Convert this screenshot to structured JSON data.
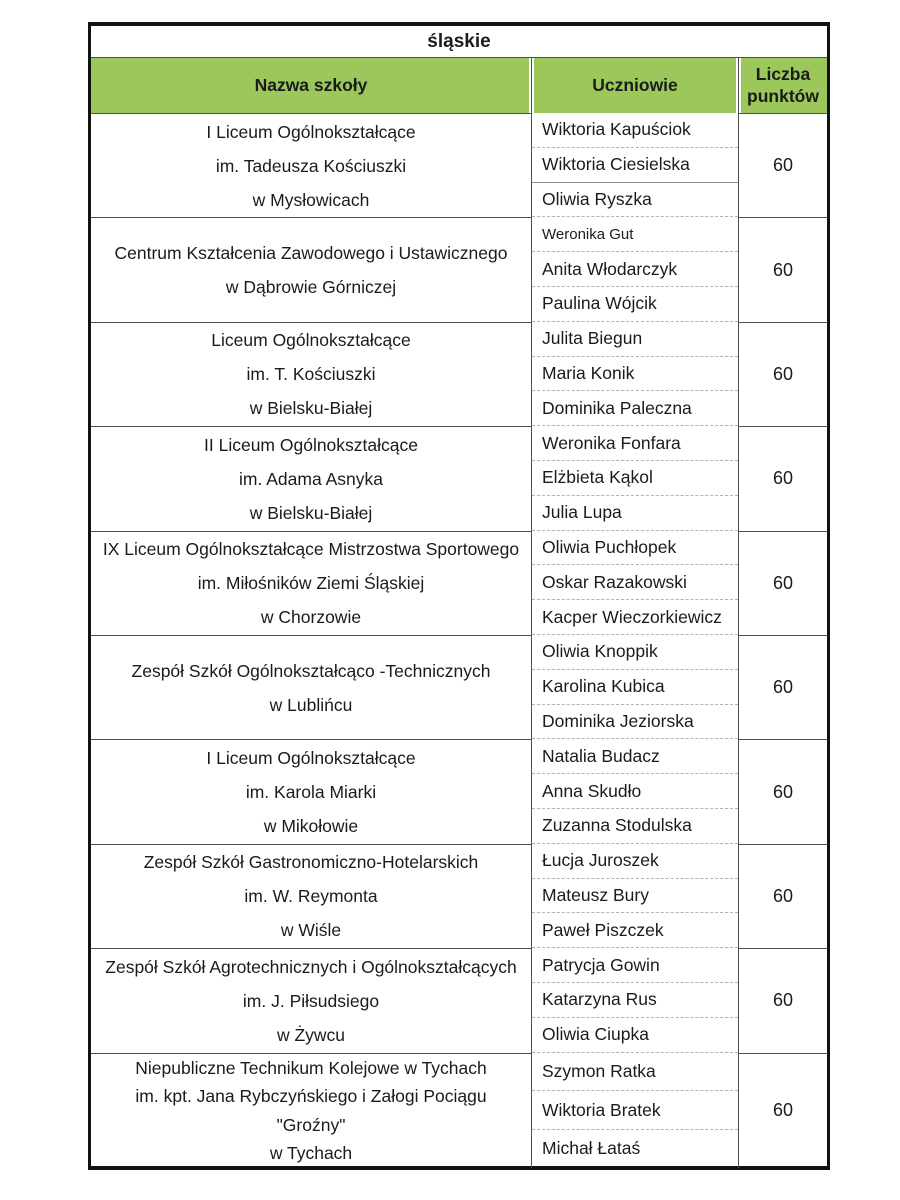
{
  "region_title": "śląskie",
  "accent_green": "#9cc75b",
  "columns": {
    "school": "Nazwa szkoły",
    "students": "Uczniowie",
    "points": "Liczba punktów"
  },
  "groups": [
    {
      "school": "I Liceum Ogólnokształcące\nim. Tadeusza Kościuszki\nw Mysłowicach",
      "students": [
        "Wiktoria Kapuściok",
        "Wiktoria Ciesielska",
        "Oliwia Ryszka"
      ],
      "points": "60"
    },
    {
      "school": "Centrum Kształcenia Zawodowego i Ustawicznego\nw Dąbrowie Górniczej",
      "students": [
        "Weronika Gut",
        "Anita Włodarczyk",
        "Paulina Wójcik"
      ],
      "points": "60"
    },
    {
      "school": "Liceum Ogólnokształcące\nim. T. Kościuszki\nw Bielsku-Białej",
      "students": [
        "Julita Biegun",
        "Maria Konik",
        "Dominika Paleczna"
      ],
      "points": "60"
    },
    {
      "school": "II Liceum Ogólnokształcące\nim. Adama Asnyka\nw Bielsku-Białej",
      "students": [
        "Weronika Fonfara",
        "Elżbieta Kąkol",
        "Julia Lupa"
      ],
      "points": "60"
    },
    {
      "school": "IX Liceum Ogólnokształcące Mistrzostwa Sportowego\nim. Miłośników Ziemi Śląskiej\nw Chorzowie",
      "students": [
        "Oliwia Puchłopek",
        "Oskar Razakowski",
        "Kacper Wieczorkiewicz"
      ],
      "points": "60"
    },
    {
      "school": "Zespół Szkół Ogólnokształcąco -Technicznych\nw Lublińcu",
      "students": [
        "Oliwia Knoppik",
        "Karolina Kubica",
        "Dominika Jeziorska"
      ],
      "points": "60"
    },
    {
      "school": "I Liceum Ogólnokształcące\nim. Karola Miarki\nw Mikołowie",
      "students": [
        "Natalia Budacz",
        "Anna Skudło",
        "Zuzanna Stodulska"
      ],
      "points": "60"
    },
    {
      "school": "Zespół Szkół Gastronomiczno-Hotelarskich\nim. W. Reymonta\nw Wiśle",
      "students": [
        "Łucja Juroszek",
        "Mateusz Bury",
        "Paweł Piszczek"
      ],
      "points": "60"
    },
    {
      "school": "Zespół Szkół Agrotechnicznych i Ogólnokształcących\nim. J. Piłsudsiego\nw Żywcu",
      "students": [
        "Patrycja Gowin",
        "Katarzyna Rus",
        "Oliwia Ciupka"
      ],
      "points": "60"
    },
    {
      "school": "Niepubliczne Technikum Kolejowe w Tychach\nim. kpt. Jana Rybczyńskiego i Załogi Pociągu\n\"Groźny\"\nw Tychach",
      "students": [
        "Szymon Ratka",
        "Wiktoria Bratek",
        "Michał Łataś"
      ],
      "points": "60"
    }
  ]
}
